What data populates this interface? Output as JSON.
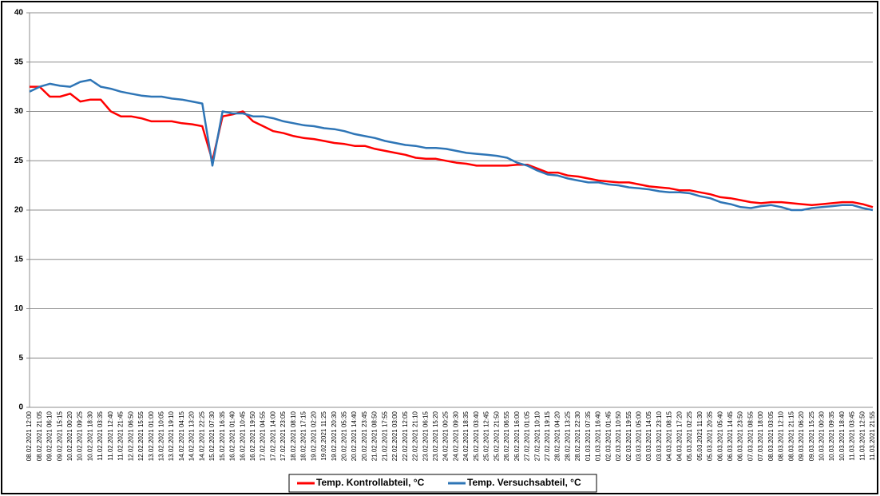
{
  "chart_data": {
    "type": "line",
    "categories": [
      "08.02.2021 12:00",
      "08.02.2021 21:05",
      "09.02.2021 06:10",
      "09.02.2021 15:15",
      "10.02.2021 00:20",
      "10.02.2021 09:25",
      "10.02.2021 18:30",
      "11.02.2021 03:35",
      "11.02.2021 12:40",
      "11.02.2021 21:45",
      "12.02.2021 06:50",
      "12.02.2021 15:55",
      "13.02.2021 01:00",
      "13.02.2021 10:05",
      "13.02.2021 19:10",
      "14.02.2021 04:15",
      "14.02.2021 13:20",
      "14.02.2021 22:25",
      "15.02.2021 07:30",
      "15.02.2021 16:35",
      "16.02.2021 01:40",
      "16.02.2021 10:45",
      "16.02.2021 19:50",
      "17.02.2021 04:55",
      "17.02.2021 14:00",
      "17.02.2021 23:05",
      "18.02.2021 08:10",
      "18.02.2021 17:15",
      "19.02.2021 02:20",
      "19.02.2021 11:25",
      "19.02.2021 20:30",
      "20.02.2021 05:35",
      "20.02.2021 14:40",
      "20.02.2021 23:45",
      "21.02.2021 08:50",
      "21.02.2021 17:55",
      "22.02.2021 03:00",
      "22.02.2021 12:05",
      "22.02.2021 21:10",
      "23.02.2021 06:15",
      "23.02.2021 15:20",
      "24.02.2021 00:25",
      "24.02.2021 09:30",
      "24.02.2021 18:35",
      "25.02.2021 03:40",
      "25.02.2021 12:45",
      "25.02.2021 21:50",
      "26.02.2021 06:55",
      "26.02.2021 16:00",
      "27.02.2021 01:05",
      "27.02.2021 10:10",
      "27.02.2021 19:15",
      "28.02.2021 04:20",
      "28.02.2021 13:25",
      "28.02.2021 22:30",
      "01.03.2021 07:35",
      "01.03.2021 16:40",
      "02.03.2021 01:45",
      "02.03.2021 10:50",
      "02.03.2021 19:55",
      "03.03.2021 05:00",
      "03.03.2021 14:05",
      "03.03.2021 23:10",
      "04.03.2021 08:15",
      "04.03.2021 17:20",
      "05.03.2021 02:25",
      "05.03.2021 11:30",
      "05.03.2021 20:35",
      "06.03.2021 05:40",
      "06.03.2021 14:45",
      "06.03.2021 23:50",
      "07.03.2021 08:55",
      "07.03.2021 18:00",
      "08.03.2021 03:05",
      "08.03.2021 12:10",
      "08.03.2021 21:15",
      "09.03.2021 06:20",
      "09.03.2021 15:25",
      "10.03.2021 00:30",
      "10.03.2021 09:35",
      "10.03.2021 18:40",
      "11.03.2021 03:45",
      "11.03.2021 12:50",
      "11.03.2021 21:55"
    ],
    "series": [
      {
        "name": "Temp. Kontrollabteil, °C",
        "color": "#ff0000",
        "values": [
          32.5,
          32.5,
          31.5,
          31.5,
          31.8,
          31,
          31.2,
          31.2,
          30,
          29.5,
          29.5,
          29.3,
          29,
          29,
          29,
          28.8,
          28.7,
          28.5,
          25,
          29.5,
          29.7,
          30,
          29,
          28.5,
          28,
          27.8,
          27.5,
          27.3,
          27.2,
          27,
          26.8,
          26.7,
          26.5,
          26.5,
          26.2,
          26,
          25.8,
          25.6,
          25.3,
          25.2,
          25.2,
          25,
          24.8,
          24.7,
          24.5,
          24.5,
          24.5,
          24.5,
          24.6,
          24.6,
          24.2,
          23.8,
          23.8,
          23.5,
          23.4,
          23.2,
          23,
          22.9,
          22.8,
          22.8,
          22.6,
          22.4,
          22.3,
          22.2,
          22,
          22,
          21.8,
          21.6,
          21.3,
          21.2,
          21,
          20.8,
          20.7,
          20.8,
          20.8,
          20.7,
          20.6,
          20.5,
          20.6,
          20.7,
          20.8,
          20.8,
          20.6,
          20.3
        ]
      },
      {
        "name": "Temp. Versuchsabteil, °C",
        "color": "#2e75b6",
        "values": [
          32,
          32.5,
          32.8,
          32.6,
          32.5,
          33,
          33.2,
          32.5,
          32.3,
          32,
          31.8,
          31.6,
          31.5,
          31.5,
          31.3,
          31.2,
          31,
          30.8,
          24.5,
          30,
          29.8,
          29.8,
          29.5,
          29.5,
          29.3,
          29,
          28.8,
          28.6,
          28.5,
          28.3,
          28.2,
          28,
          27.7,
          27.5,
          27.3,
          27,
          26.8,
          26.6,
          26.5,
          26.3,
          26.3,
          26.2,
          26,
          25.8,
          25.7,
          25.6,
          25.5,
          25.3,
          24.8,
          24.5,
          24,
          23.6,
          23.5,
          23.2,
          23,
          22.8,
          22.8,
          22.6,
          22.5,
          22.3,
          22.2,
          22.1,
          21.9,
          21.8,
          21.8,
          21.7,
          21.4,
          21.2,
          20.8,
          20.6,
          20.3,
          20.2,
          20.4,
          20.5,
          20.3,
          20,
          20,
          20.2,
          20.3,
          20.4,
          20.5,
          20.5,
          20.2,
          20
        ]
      }
    ],
    "ylim": [
      0,
      40
    ],
    "yticks": [
      0,
      5,
      10,
      15,
      20,
      25,
      30,
      35,
      40
    ],
    "grid": true,
    "legend": "bottom"
  }
}
